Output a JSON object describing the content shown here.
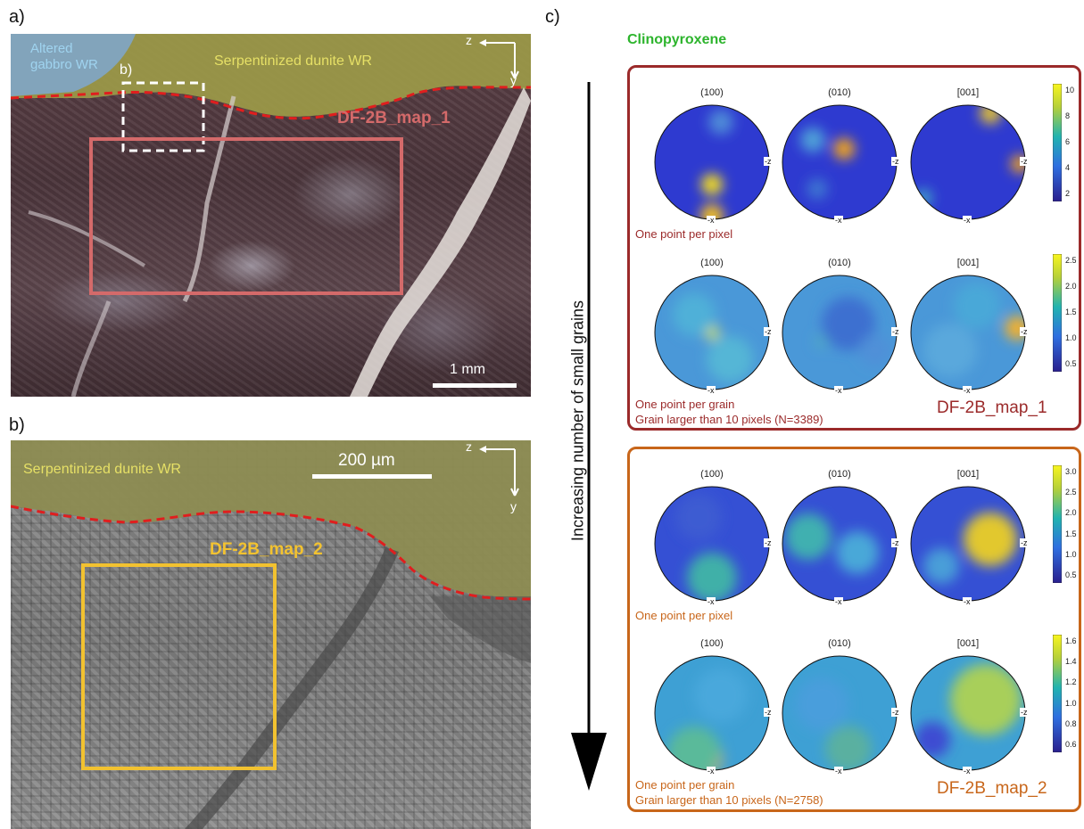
{
  "panel_labels": {
    "a": "a)",
    "b": "b)",
    "c": "c)"
  },
  "panel_a": {
    "label_altered_line1": "Altered",
    "label_altered_line2": "gabbro WR",
    "label_serp": "Serpentinized dunite WR",
    "label_inset": "b)",
    "map_label": "DF-2B_map_1",
    "scale": "1 mm",
    "axis_z": "z",
    "axis_y": "y"
  },
  "panel_b": {
    "label_serp": "Serpentinized dunite WR",
    "map_label": "DF-2B_map_2",
    "scale": "200 µm",
    "axis_z": "z",
    "axis_y": "y"
  },
  "panel_c": {
    "mineral": "Clinopyroxene",
    "arrow_label": "Increasing number of small grains",
    "pf_titles": [
      "(100)",
      "(010)",
      "[001]"
    ],
    "axis_x": "-x",
    "axis_z": "-z",
    "colors": {
      "box1": "#9b2a2a",
      "box2": "#c8661a",
      "mineral": "#2db42d"
    },
    "rows": [
      {
        "caption": "One point per pixel",
        "caption2": "",
        "ticks": [
          "10",
          "8",
          "6",
          "4",
          "2"
        ]
      },
      {
        "caption": "One point per grain",
        "caption2": "Grain larger than 10 pixels (N=3389)",
        "ticks": [
          "2.5",
          "2.0",
          "1.5",
          "1.0",
          "0.5"
        ]
      },
      {
        "caption": "One point per pixel",
        "caption2": "",
        "ticks": [
          "3.0",
          "2.5",
          "2.0",
          "1.5",
          "1.0",
          "0.5"
        ]
      },
      {
        "caption": "One point per grain",
        "caption2": "Grain larger than 10 pixels (N=2758)",
        "ticks": [
          "1.6",
          "1.4",
          "1.2",
          "1.0",
          "0.8",
          "0.6"
        ]
      }
    ],
    "map1": "DF-2B_map_1",
    "map2": "DF-2B_map_2"
  }
}
